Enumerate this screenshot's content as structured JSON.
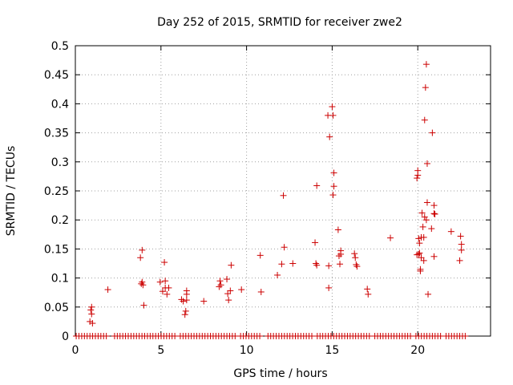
{
  "chart_data": {
    "type": "scatter",
    "title": "Day 252 of 2015, SRMTID for receiver zwe2",
    "xlabel": "GPS time / hours",
    "ylabel": "SRMTID / TECUs",
    "xlim": [
      0,
      24.25
    ],
    "ylim": [
      0,
      0.5
    ],
    "xticks": [
      0,
      5,
      10,
      15,
      20
    ],
    "yticks": [
      0,
      0.05,
      0.1,
      0.15,
      0.2,
      0.25,
      0.3,
      0.35,
      0.4,
      0.45,
      0.5
    ],
    "ytick_labels": [
      "0",
      "0.05",
      "0.1",
      "0.15",
      "0.2",
      "0.25",
      "0.3",
      "0.35",
      "0.4",
      "0.45",
      "0.5"
    ],
    "xtick_labels": [
      "0",
      "5",
      "10",
      "15",
      "20"
    ],
    "grid": true,
    "marker": "+",
    "color": "#cc0000",
    "series": [
      {
        "name": "SRMTID",
        "points": [
          [
            0.85,
            0.025
          ],
          [
            0.9,
            0.045
          ],
          [
            0.95,
            0.05
          ],
          [
            0.95,
            0.038
          ],
          [
            1.0,
            0.022
          ],
          [
            1.9,
            0.08
          ],
          [
            3.8,
            0.135
          ],
          [
            3.85,
            0.09
          ],
          [
            3.9,
            0.148
          ],
          [
            3.9,
            0.093
          ],
          [
            3.95,
            0.088
          ],
          [
            4.0,
            0.053
          ],
          [
            4.95,
            0.093
          ],
          [
            5.1,
            0.077
          ],
          [
            5.2,
            0.127
          ],
          [
            5.25,
            0.095
          ],
          [
            5.25,
            0.083
          ],
          [
            5.35,
            0.072
          ],
          [
            5.45,
            0.083
          ],
          [
            6.2,
            0.063
          ],
          [
            6.3,
            0.06
          ],
          [
            6.4,
            0.037
          ],
          [
            6.45,
            0.043
          ],
          [
            6.5,
            0.078
          ],
          [
            6.5,
            0.072
          ],
          [
            6.5,
            0.062
          ],
          [
            7.5,
            0.06
          ],
          [
            8.4,
            0.085
          ],
          [
            8.45,
            0.095
          ],
          [
            8.5,
            0.088
          ],
          [
            8.85,
            0.098
          ],
          [
            8.9,
            0.073
          ],
          [
            8.95,
            0.062
          ],
          [
            9.05,
            0.078
          ],
          [
            9.1,
            0.122
          ],
          [
            9.7,
            0.08
          ],
          [
            10.8,
            0.139
          ],
          [
            10.85,
            0.076
          ],
          [
            11.8,
            0.105
          ],
          [
            12.05,
            0.124
          ],
          [
            12.15,
            0.242
          ],
          [
            12.2,
            0.153
          ],
          [
            12.7,
            0.125
          ],
          [
            14.0,
            0.161
          ],
          [
            14.05,
            0.125
          ],
          [
            14.1,
            0.259
          ],
          [
            14.1,
            0.122
          ],
          [
            14.75,
            0.38
          ],
          [
            14.8,
            0.121
          ],
          [
            14.8,
            0.083
          ],
          [
            14.85,
            0.343
          ],
          [
            15.0,
            0.395
          ],
          [
            15.05,
            0.38
          ],
          [
            15.05,
            0.243
          ],
          [
            15.1,
            0.281
          ],
          [
            15.1,
            0.258
          ],
          [
            15.35,
            0.183
          ],
          [
            15.4,
            0.138
          ],
          [
            15.45,
            0.124
          ],
          [
            15.5,
            0.147
          ],
          [
            15.5,
            0.141
          ],
          [
            16.3,
            0.142
          ],
          [
            16.35,
            0.135
          ],
          [
            16.4,
            0.123
          ],
          [
            16.45,
            0.12
          ],
          [
            17.05,
            0.081
          ],
          [
            17.1,
            0.072
          ],
          [
            18.4,
            0.169
          ],
          [
            19.95,
            0.272
          ],
          [
            19.95,
            0.14
          ],
          [
            20.0,
            0.285
          ],
          [
            20.0,
            0.277
          ],
          [
            20.05,
            0.168
          ],
          [
            20.05,
            0.141
          ],
          [
            20.1,
            0.16
          ],
          [
            20.1,
            0.143
          ],
          [
            20.15,
            0.115
          ],
          [
            20.15,
            0.112
          ],
          [
            20.2,
            0.17
          ],
          [
            20.2,
            0.135
          ],
          [
            20.25,
            0.212
          ],
          [
            20.3,
            0.188
          ],
          [
            20.35,
            0.17
          ],
          [
            20.35,
            0.13
          ],
          [
            20.4,
            0.205
          ],
          [
            20.4,
            0.372
          ],
          [
            20.45,
            0.428
          ],
          [
            20.5,
            0.2
          ],
          [
            20.5,
            0.468
          ],
          [
            20.55,
            0.297
          ],
          [
            20.55,
            0.23
          ],
          [
            20.6,
            0.072
          ],
          [
            20.8,
            0.185
          ],
          [
            20.85,
            0.35
          ],
          [
            20.95,
            0.225
          ],
          [
            20.95,
            0.211
          ],
          [
            21.0,
            0.21
          ],
          [
            20.95,
            0.137
          ],
          [
            21.95,
            0.18
          ],
          [
            22.45,
            0.13
          ],
          [
            22.5,
            0.172
          ],
          [
            22.55,
            0.158
          ],
          [
            22.55,
            0.148
          ]
        ]
      }
    ],
    "zero_band": {
      "y": 0,
      "x_start": 0.05,
      "x_end": 22.8,
      "step": 0.16,
      "gaps": [
        [
          1.9,
          2.15
        ],
        [
          5.95,
          6.1
        ],
        [
          9.35,
          9.55
        ],
        [
          10.9,
          11.1
        ],
        [
          13.85,
          14.05
        ],
        [
          17.2,
          17.35
        ],
        [
          19.65,
          19.85
        ],
        [
          21.35,
          21.55
        ]
      ]
    }
  }
}
